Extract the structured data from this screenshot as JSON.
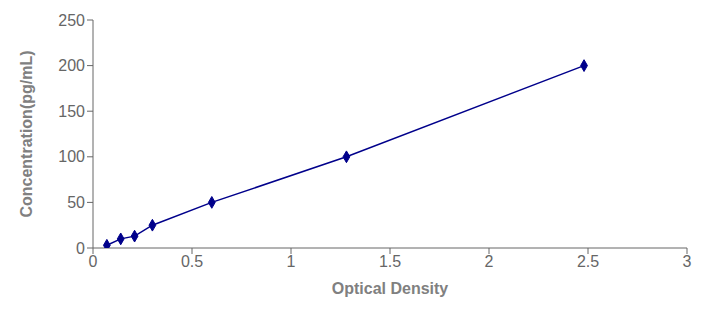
{
  "chart_data": {
    "type": "line",
    "x": [
      0.07,
      0.14,
      0.21,
      0.3,
      0.6,
      1.28,
      2.48
    ],
    "values": [
      3,
      10,
      13,
      25,
      50,
      100,
      200
    ],
    "color": "#00008B",
    "marker": "diamond",
    "line_style": "solid",
    "xlabel": "Optical Density",
    "ylabel": "Concentration(pg/mL)",
    "xlim": [
      0,
      3
    ],
    "ylim": [
      0,
      250
    ],
    "xticks": [
      0,
      0.5,
      1,
      1.5,
      2,
      2.5,
      3
    ],
    "yticks": [
      0,
      50,
      100,
      150,
      200,
      250
    ],
    "grid": false
  }
}
